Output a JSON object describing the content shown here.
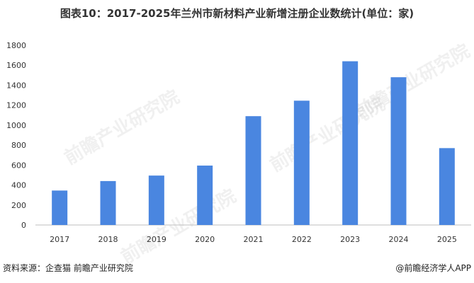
{
  "title": "图表10：2017-2025年兰州市新材料产业新增注册企业数统计(单位：家)",
  "footer": {
    "source": "资料来源：企查猫 前瞻产业研究院",
    "credit": "@前瞻经济学人APP"
  },
  "watermark": "前瞻产业研究院",
  "colors": {
    "bar": "#4a86e0",
    "axis": "#bfbfbf",
    "text": "#333333"
  },
  "chart_data": {
    "type": "bar",
    "categories": [
      "2017",
      "2018",
      "2019",
      "2020",
      "2021",
      "2022",
      "2023",
      "2024",
      "2025"
    ],
    "values": [
      345,
      440,
      495,
      595,
      1090,
      1245,
      1640,
      1480,
      770
    ],
    "title": "图表10：2017-2025年兰州市新材料产业新增注册企业数统计(单位：家)",
    "xlabel": "",
    "ylabel": "",
    "ylim": [
      0,
      1800
    ],
    "yticks": [
      "0",
      "200",
      "400",
      "600",
      "800",
      "1000",
      "1200",
      "1400",
      "1600",
      "1800"
    ],
    "grid": false,
    "legend": "none"
  }
}
